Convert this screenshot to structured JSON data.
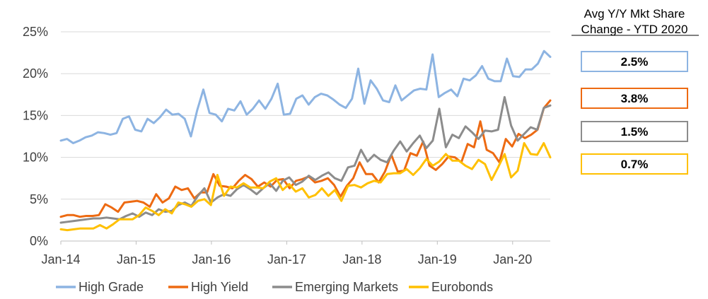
{
  "chart_data": {
    "type": "line",
    "title": "",
    "xlabel": "",
    "ylabel": "",
    "ylim": [
      0,
      25
    ],
    "yticks": [
      "0%",
      "5%",
      "10%",
      "15%",
      "20%",
      "25%"
    ],
    "ytick_values": [
      0,
      5,
      10,
      15,
      20,
      25
    ],
    "x_tick_labels": [
      "Jan-14",
      "Jan-15",
      "Jan-16",
      "Jan-17",
      "Jan-18",
      "Jan-19",
      "Jan-20"
    ],
    "x_start": "Jan-14",
    "x_end": "Jul-20",
    "grid": true,
    "legend_position": "bottom",
    "series": [
      {
        "name": "High Grade",
        "color": "#8DB4E2",
        "values": [
          12.0,
          12.2,
          11.7,
          12.0,
          12.4,
          12.6,
          13.0,
          12.9,
          12.7,
          12.9,
          14.6,
          14.9,
          13.3,
          13.1,
          14.6,
          14.1,
          14.8,
          15.7,
          15.1,
          15.2,
          14.6,
          12.5,
          15.6,
          18.1,
          15.3,
          15.1,
          14.3,
          15.8,
          15.6,
          16.7,
          15.1,
          15.8,
          16.8,
          15.8,
          17.0,
          18.8,
          15.1,
          15.2,
          17.0,
          17.4,
          16.3,
          17.2,
          17.6,
          17.4,
          16.9,
          16.3,
          15.9,
          17.0,
          20.6,
          16.4,
          19.2,
          18.2,
          16.8,
          16.6,
          18.6,
          16.8,
          17.4,
          18.0,
          18.2,
          18.1,
          22.3,
          17.2,
          17.7,
          18.1,
          17.3,
          19.4,
          19.2,
          19.8,
          20.9,
          19.4,
          19.1,
          19.1,
          21.8,
          19.7,
          19.6,
          20.5,
          20.5,
          21.2,
          22.7,
          22.0
        ]
      },
      {
        "name": "High Yield",
        "color": "#ED6A12",
        "values": [
          2.9,
          3.1,
          3.1,
          2.9,
          3.0,
          3.0,
          3.1,
          4.4,
          4.0,
          3.5,
          4.6,
          4.7,
          4.8,
          4.6,
          4.1,
          5.6,
          4.6,
          5.1,
          6.5,
          6.1,
          6.3,
          5.1,
          5.8,
          5.8,
          8.0,
          6.6,
          6.5,
          6.3,
          7.2,
          7.9,
          7.4,
          6.5,
          7.0,
          6.5,
          7.3,
          7.4,
          6.3,
          7.2,
          7.4,
          7.7,
          7.0,
          7.2,
          7.5,
          6.7,
          5.3,
          6.6,
          7.5,
          9.4,
          8.0,
          8.0,
          7.0,
          8.3,
          10.3,
          8.3,
          8.4,
          10.5,
          10.2,
          11.9,
          9.0,
          8.5,
          9.2,
          10.1,
          10.0,
          9.4,
          11.6,
          11.2,
          14.3,
          10.9,
          10.5,
          9.4,
          12.2,
          11.3,
          12.8,
          12.3,
          12.7,
          13.3,
          15.9,
          16.8
        ]
      },
      {
        "name": "Emerging Markets",
        "color": "#8C8C8C",
        "values": [
          2.2,
          2.3,
          2.4,
          2.5,
          2.6,
          2.7,
          2.7,
          2.8,
          2.7,
          2.6,
          3.0,
          3.3,
          2.9,
          3.4,
          3.1,
          3.8,
          3.5,
          3.6,
          4.3,
          4.6,
          4.2,
          5.4,
          6.3,
          4.6,
          5.2,
          5.6,
          5.4,
          6.2,
          6.7,
          6.2,
          5.6,
          6.3,
          6.9,
          6.0,
          7.2,
          7.6,
          6.7,
          7.1,
          7.8,
          7.3,
          7.8,
          8.2,
          7.5,
          7.2,
          8.8,
          9.0,
          10.9,
          9.5,
          10.3,
          9.7,
          9.4,
          10.8,
          11.9,
          10.7,
          11.7,
          12.6,
          11.1,
          12.0,
          15.8,
          11.2,
          12.7,
          12.3,
          13.7,
          13.0,
          12.2,
          13.2,
          13.1,
          13.3,
          17.2,
          13.8,
          12.0,
          12.8,
          13.6,
          13.3,
          15.9,
          16.2
        ]
      },
      {
        "name": "Eurobonds",
        "color": "#FFC000",
        "values": [
          1.4,
          1.3,
          1.4,
          1.5,
          1.5,
          1.5,
          1.9,
          1.5,
          2.0,
          2.6,
          2.6,
          2.6,
          3.1,
          4.0,
          3.6,
          3.1,
          3.8,
          3.3,
          4.6,
          4.4,
          4.1,
          4.8,
          5.0,
          4.3,
          7.9,
          5.4,
          6.5,
          6.4,
          6.9,
          6.4,
          6.4,
          6.3,
          7.1,
          7.5,
          6.1,
          6.8,
          5.9,
          6.3,
          5.2,
          5.5,
          6.3,
          5.4,
          6.1,
          4.8,
          6.6,
          6.7,
          6.4,
          6.9,
          7.2,
          7.0,
          8.0,
          8.1,
          8.1,
          8.6,
          7.9,
          8.7,
          9.8,
          9.0,
          9.5,
          10.4,
          9.6,
          9.6,
          9.0,
          8.6,
          9.7,
          9.2,
          7.3,
          8.8,
          10.4,
          7.6,
          8.4,
          11.7,
          10.4,
          10.3,
          11.7,
          10.0
        ]
      }
    ]
  },
  "side_panel": {
    "title_line1": "Avg Y/Y Mkt Share",
    "title_line2": "Change - YTD 2020",
    "boxes": [
      {
        "series": "High Grade",
        "value": "2.5%",
        "color": "#8DB4E2"
      },
      {
        "series": "High Yield",
        "value": "3.8%",
        "color": "#ED6A12"
      },
      {
        "series": "Emerging Markets",
        "value": "1.5%",
        "color": "#8C8C8C"
      },
      {
        "series": "Eurobonds",
        "value": "0.7%",
        "color": "#FFC000"
      }
    ]
  }
}
